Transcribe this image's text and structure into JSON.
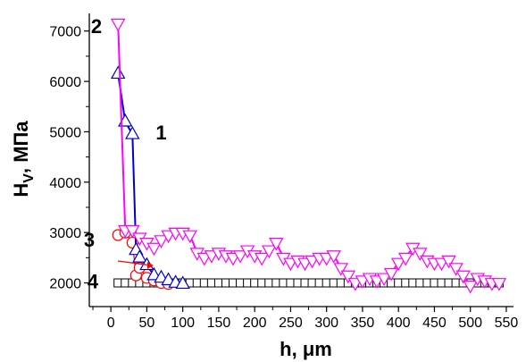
{
  "chart_data": {
    "type": "scatter",
    "xlabel": "h, μm",
    "ylabel": "H",
    "ylabel_sub": "V",
    "ylabel_suffix": ", МПа",
    "xlim": [
      -30,
      560
    ],
    "ylim": [
      1530,
      7350
    ],
    "x_ticks": [
      0,
      50,
      100,
      150,
      200,
      250,
      300,
      350,
      400,
      450,
      500,
      550
    ],
    "x_tick_labels": [
      "0",
      "50",
      "100",
      "150",
      "200",
      "250",
      "300",
      "350",
      "400",
      "450",
      "500",
      "550"
    ],
    "y_ticks": [
      2000,
      3000,
      4000,
      5000,
      6000,
      7000
    ],
    "y_tick_labels": [
      "2000",
      "3000",
      "4000",
      "5000",
      "6000",
      "7000"
    ],
    "grid": false,
    "series": [
      {
        "name": "4",
        "marker": "square",
        "color": "#000000",
        "x": [
          10,
          20,
          30,
          40,
          50,
          60,
          70,
          80,
          90,
          100,
          110,
          120,
          130,
          140,
          150,
          160,
          170,
          180,
          190,
          200,
          210,
          220,
          230,
          240,
          250,
          260,
          270,
          280,
          290,
          300,
          310,
          320,
          330,
          340,
          350,
          360,
          370,
          380,
          390,
          400,
          410,
          420,
          430,
          440,
          450,
          460,
          470,
          480,
          490,
          500,
          510,
          520,
          530,
          540
        ],
        "y": [
          2000,
          2000,
          2000,
          2000,
          2000,
          2000,
          2000,
          2000,
          2000,
          2000,
          2000,
          2000,
          2000,
          2000,
          2000,
          2000,
          2000,
          2000,
          2000,
          2000,
          2000,
          2000,
          2000,
          2000,
          2000,
          2000,
          2000,
          2000,
          2000,
          2000,
          2000,
          2000,
          2000,
          2000,
          2000,
          2000,
          2000,
          2000,
          2000,
          2000,
          2000,
          2000,
          2000,
          2000,
          2000,
          2000,
          2000,
          2000,
          2000,
          2000,
          2000,
          2000,
          2000,
          2000
        ]
      },
      {
        "name": "3",
        "marker": "circle",
        "color": "#ff0000",
        "x": [
          10,
          20,
          30,
          35,
          40,
          50,
          60,
          70,
          80
        ],
        "y": [
          2950,
          3000,
          2800,
          2150,
          2300,
          2100,
          2050,
          2000,
          1980
        ]
      },
      {
        "name": "1",
        "marker": "triangle-up",
        "color": "#0000cc",
        "x": [
          10,
          20,
          30,
          35,
          40,
          50,
          60,
          70,
          80,
          90,
          100
        ],
        "y": [
          6150,
          5200,
          4950,
          2650,
          2500,
          2350,
          2150,
          2100,
          2050,
          2000,
          1980
        ]
      },
      {
        "name": "2",
        "marker": "triangle-down",
        "color": "#ff00ff",
        "x": [
          10,
          20,
          30,
          40,
          50,
          60,
          70,
          80,
          90,
          100,
          110,
          120,
          130,
          140,
          150,
          160,
          170,
          180,
          190,
          200,
          210,
          220,
          230,
          240,
          250,
          260,
          270,
          280,
          290,
          300,
          310,
          320,
          330,
          340,
          350,
          360,
          370,
          380,
          390,
          400,
          410,
          420,
          430,
          440,
          450,
          460,
          470,
          480,
          490,
          500,
          510,
          520,
          530,
          540
        ],
        "y": [
          7150,
          3050,
          3050,
          2900,
          2800,
          2700,
          2850,
          2950,
          3000,
          3000,
          2950,
          2600,
          2500,
          2550,
          2600,
          2550,
          2500,
          2550,
          2650,
          2550,
          2500,
          2650,
          2800,
          2500,
          2400,
          2450,
          2400,
          2450,
          2500,
          2500,
          2550,
          2300,
          2150,
          2000,
          2050,
          2100,
          2050,
          2100,
          2200,
          2400,
          2500,
          2700,
          2600,
          2450,
          2400,
          2400,
          2450,
          2300,
          2150,
          1950,
          2100,
          2050,
          2000,
          2000
        ]
      }
    ],
    "annotations": [
      {
        "text": "1",
        "x": 70,
        "y": 4850
      },
      {
        "text": "2",
        "x": -20,
        "y": 6960
      },
      {
        "text": "3",
        "x": -30,
        "y": 2720
      },
      {
        "text": "4",
        "x": -25,
        "y": 1890
      }
    ]
  }
}
